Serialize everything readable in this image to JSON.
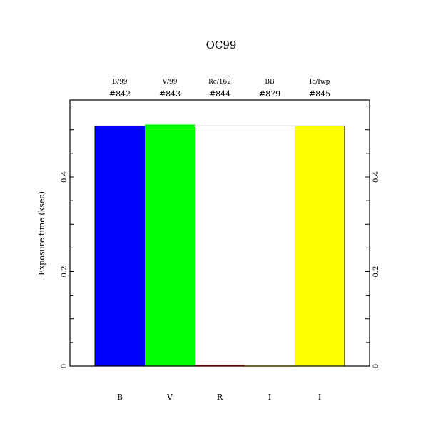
{
  "chart_data": {
    "type": "bar",
    "title": "OC99",
    "ylabel": "Exposure time (ksec)",
    "xlabel": "",
    "ylim": [
      0,
      0.563
    ],
    "yticks": [
      0,
      0.2,
      0.4
    ],
    "ytick_labels": [
      "0",
      "0.2",
      "0.4"
    ],
    "grid": false,
    "categories": [
      "B",
      "V",
      "R",
      "I",
      "I"
    ],
    "top_labels": [
      "B/99",
      "V/99",
      "Rc/162",
      "BB",
      "Ic/Iwp"
    ],
    "run_ids": [
      "#842",
      "#843",
      "#844",
      "#879",
      "#845"
    ],
    "values": [
      0.508,
      0.511,
      0.002,
      0.001,
      0.508
    ],
    "colors": [
      "#0000ff",
      "#00ff00",
      "#ff0000",
      "#ffff00",
      "#ffff00"
    ],
    "outline_value": 0.508
  }
}
